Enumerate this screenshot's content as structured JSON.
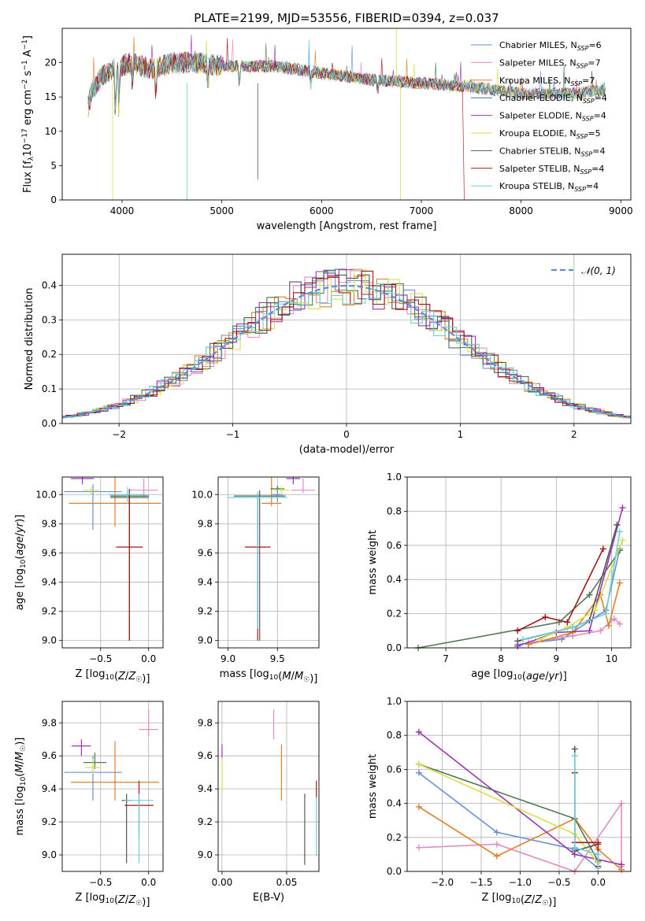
{
  "figure_title": "PLATE=2199, MJD=53556, FIBERID=0394, z=0.037",
  "series": [
    {
      "name": "Chabrier MILES, N",
      "sub": "SSP",
      "suffix": "=6",
      "color": "#6a8fd8"
    },
    {
      "name": "Salpeter MILES, N",
      "sub": "SSP",
      "suffix": "=7",
      "color": "#e38cc2"
    },
    {
      "name": "Kroupa MILES, N",
      "sub": "SSP",
      "suffix": "=7",
      "color": "#e07f2a"
    },
    {
      "name": "Chabrier ELODIE, N",
      "sub": "SSP",
      "suffix": "=4",
      "color": "#4f7a55"
    },
    {
      "name": "Salpeter ELODIE, N",
      "sub": "SSP",
      "suffix": "=4",
      "color": "#9c35b4"
    },
    {
      "name": "Kroupa ELODIE, N",
      "sub": "SSP",
      "suffix": "=5",
      "color": "#d6e04a"
    },
    {
      "name": "Chabrier STELIB, N",
      "sub": "SSP",
      "suffix": "=4",
      "color": "#555555"
    },
    {
      "name": "Salpeter STELIB, N",
      "sub": "SSP",
      "suffix": "=4",
      "color": "#a51616"
    },
    {
      "name": "Kroupa STELIB, N",
      "sub": "SSP",
      "suffix": "=4",
      "color": "#6cd0d6"
    }
  ],
  "chart_data": [
    {
      "id": "spectrum",
      "type": "line",
      "xlabel": "wavelength [Angstrom, rest frame]",
      "ylabel": "Flux [f_λ 10^-17 erg cm^-2 s^-1 A^-1]",
      "xlim": [
        3400,
        9100
      ],
      "ylim": [
        0,
        25
      ],
      "xticks": [
        4000,
        5000,
        6000,
        7000,
        8000,
        9000
      ],
      "yticks": [
        0,
        5,
        10,
        15,
        20
      ],
      "continuum": [
        [
          3650,
          13
        ],
        [
          3700,
          16
        ],
        [
          3800,
          18
        ],
        [
          3900,
          19
        ],
        [
          4000,
          19.5
        ],
        [
          4100,
          20
        ],
        [
          4300,
          19
        ],
        [
          4500,
          20
        ],
        [
          4800,
          20
        ],
        [
          5000,
          19.5
        ],
        [
          5500,
          19.5
        ],
        [
          6000,
          18.5
        ],
        [
          6500,
          17.5
        ],
        [
          7000,
          17
        ],
        [
          7500,
          16.5
        ],
        [
          8000,
          15.5
        ],
        [
          8500,
          15.5
        ],
        [
          8850,
          16
        ]
      ],
      "legend_position": "upper-right"
    },
    {
      "id": "residuals",
      "type": "line",
      "xlabel": "(data-model)/error",
      "ylabel": "Normed distribution",
      "xlim": [
        -2.5,
        2.5
      ],
      "ylim": [
        0,
        0.49
      ],
      "xticks": [
        -2,
        -1,
        0,
        1,
        2
      ],
      "yticks": [
        0.0,
        0.1,
        0.2,
        0.3,
        0.4
      ],
      "normal_label": "𝒩(0, 1)",
      "grid": true
    },
    {
      "id": "age_vs_z",
      "type": "scatter",
      "xlabel": "Z [log10(Z/Z☉)]",
      "ylabel": "age  [log10(age/yr)]",
      "xlim": [
        -0.9,
        0.15
      ],
      "ylim": [
        8.95,
        10.12
      ],
      "xticks": [
        -0.5,
        0.0
      ],
      "yticks": [
        9.0,
        9.2,
        9.4,
        9.6,
        9.8,
        10.0
      ],
      "points": [
        {
          "s": 0,
          "x": -0.58,
          "xerr": 0.3,
          "y": 10.02,
          "yerr": [
            0.26,
            0.05
          ]
        },
        {
          "s": 1,
          "x": -0.05,
          "xerr": 0.15,
          "y": 10.03,
          "yerr": [
            0.05,
            0.08
          ]
        },
        {
          "s": 2,
          "x": -0.35,
          "xerr": 0.48,
          "y": 9.94,
          "yerr": [
            0.16,
            0.18
          ]
        },
        {
          "s": 3,
          "x": -0.2,
          "xerr": 0.2,
          "y": 9.98,
          "yerr": [
            0.05,
            0.05
          ]
        },
        {
          "s": 4,
          "x": -0.69,
          "xerr": 0.12,
          "y": 10.11,
          "yerr": [
            0.04,
            0.01
          ]
        },
        {
          "s": 5,
          "x": -0.6,
          "xerr": 0.08,
          "y": 10.03,
          "yerr": [
            0.03,
            0.02
          ]
        },
        {
          "s": 6,
          "x": -0.2,
          "xerr": 0.2,
          "y": 9.99,
          "yerr": [
            0.99,
            0.05
          ]
        },
        {
          "s": 7,
          "x": -0.2,
          "xerr": 0.14,
          "y": 9.64,
          "yerr": [
            0.64,
            0.36
          ]
        },
        {
          "s": 8,
          "x": -0.22,
          "xerr": 0.2,
          "y": 10.0,
          "yerr": [
            0.05,
            0.05
          ]
        }
      ]
    },
    {
      "id": "age_vs_mass",
      "type": "scatter",
      "xlabel": "mass [log10(M/M☉)]",
      "ylabel": "",
      "xlim": [
        8.9,
        9.92
      ],
      "ylim": [
        8.95,
        10.12
      ],
      "xticks": [
        9.0,
        9.5
      ],
      "yticks": [
        9.0,
        9.2,
        9.4,
        9.6,
        9.8,
        10.0
      ],
      "points": [
        {
          "s": 0,
          "x": 9.5,
          "xerr": 0.05,
          "y": 10.0,
          "yerr": [
            0.05,
            0.05
          ]
        },
        {
          "s": 1,
          "x": 9.76,
          "xerr": 0.12,
          "y": 10.03,
          "yerr": [
            0.02,
            0.08
          ]
        },
        {
          "s": 2,
          "x": 9.44,
          "xerr": 0.1,
          "y": 9.94,
          "yerr": [
            0.02,
            0.18
          ]
        },
        {
          "s": 3,
          "x": 9.5,
          "xerr": 0.07,
          "y": 10.04,
          "yerr": [
            0.02,
            0.02
          ]
        },
        {
          "s": 4,
          "x": 9.66,
          "xerr": 0.07,
          "y": 10.11,
          "yerr": [
            0.04,
            0.01
          ]
        },
        {
          "s": 5,
          "x": 9.54,
          "xerr": 0.08,
          "y": 10.03,
          "yerr": [
            0.02,
            0.02
          ]
        },
        {
          "s": 6,
          "x": 9.32,
          "xerr": 0.26,
          "y": 9.99,
          "yerr": [
            0.99,
            0.04
          ]
        },
        {
          "s": 7,
          "x": 9.3,
          "xerr": 0.13,
          "y": 9.64,
          "yerr": [
            0.64,
            0.36
          ]
        },
        {
          "s": 8,
          "x": 9.3,
          "xerr": 0.3,
          "y": 9.98,
          "yerr": [
            0.9,
            0.04
          ]
        }
      ]
    },
    {
      "id": "mass_weight_vs_age",
      "type": "line",
      "xlabel": "age  [log10(age/yr)]",
      "ylabel": "mass weight",
      "xlim": [
        6.3,
        10.35
      ],
      "ylim": [
        0,
        1.0
      ],
      "xticks": [
        7,
        8,
        9,
        10
      ],
      "yticks": [
        0.0,
        0.2,
        0.4,
        0.6,
        0.8,
        1.0
      ],
      "lines": [
        {
          "s": 0,
          "pts": [
            [
              8.3,
              0.02
            ],
            [
              9.1,
              0.05
            ],
            [
              9.9,
              0.22
            ],
            [
              10.15,
              0.58
            ]
          ]
        },
        {
          "s": 1,
          "pts": [
            [
              8.5,
              0.03
            ],
            [
              9.3,
              0.07
            ],
            [
              9.8,
              0.1
            ],
            [
              10.05,
              0.17
            ],
            [
              10.15,
              0.14
            ]
          ]
        },
        {
          "s": 2,
          "pts": [
            [
              8.5,
              0.02
            ],
            [
              9.3,
              0.09
            ],
            [
              9.8,
              0.31
            ],
            [
              9.95,
              0.13
            ],
            [
              10.15,
              0.38
            ]
          ]
        },
        {
          "s": 3,
          "pts": [
            [
              6.5,
              0.0
            ],
            [
              9.05,
              0.15
            ],
            [
              9.6,
              0.31
            ],
            [
              10.15,
              0.57
            ]
          ]
        },
        {
          "s": 4,
          "pts": [
            [
              8.3,
              0.01
            ],
            [
              9.0,
              0.09
            ],
            [
              9.6,
              0.1
            ],
            [
              10.2,
              0.82
            ]
          ]
        },
        {
          "s": 5,
          "pts": [
            [
              8.7,
              0.05
            ],
            [
              9.2,
              0.12
            ],
            [
              9.7,
              0.22
            ],
            [
              10.2,
              0.63
            ]
          ]
        },
        {
          "s": 6,
          "pts": [
            [
              8.3,
              0.04
            ],
            [
              9.3,
              0.12
            ],
            [
              9.6,
              0.16
            ],
            [
              10.1,
              0.72
            ]
          ]
        },
        {
          "s": 7,
          "pts": [
            [
              8.3,
              0.1
            ],
            [
              8.8,
              0.18
            ],
            [
              9.2,
              0.15
            ],
            [
              9.85,
              0.58
            ]
          ]
        },
        {
          "s": 8,
          "pts": [
            [
              8.4,
              0.05
            ],
            [
              9.3,
              0.12
            ],
            [
              9.9,
              0.2
            ],
            [
              10.15,
              0.68
            ]
          ]
        }
      ]
    },
    {
      "id": "mass_vs_z",
      "type": "scatter",
      "xlabel": "Z [log10(Z/Z☉)]",
      "ylabel": "mass [log10(M/M☉)]",
      "xlim": [
        -0.9,
        0.15
      ],
      "ylim": [
        8.9,
        9.93
      ],
      "xticks": [
        -0.5,
        0.0
      ],
      "yticks": [
        9.0,
        9.2,
        9.4,
        9.6,
        9.8
      ],
      "points": [
        {
          "s": 0,
          "x": -0.58,
          "xerr": 0.3,
          "y": 9.5,
          "yerr": [
            0.17,
            0.1
          ]
        },
        {
          "s": 1,
          "x": 0.0,
          "xerr": 0.1,
          "y": 9.76,
          "yerr": [
            0.04,
            0.12
          ]
        },
        {
          "s": 2,
          "x": -0.35,
          "xerr": 0.46,
          "y": 9.44,
          "yerr": [
            0.11,
            0.25
          ]
        },
        {
          "s": 3,
          "x": -0.56,
          "xerr": 0.12,
          "y": 9.56,
          "yerr": [
            0.04,
            0.06
          ]
        },
        {
          "s": 4,
          "x": -0.7,
          "xerr": 0.1,
          "y": 9.66,
          "yerr": [
            0.06,
            0.04
          ]
        },
        {
          "s": 5,
          "x": -0.58,
          "xerr": 0.08,
          "y": 9.53,
          "yerr": [
            0.04,
            0.05
          ]
        },
        {
          "s": 6,
          "x": -0.23,
          "xerr": 0.05,
          "y": 9.33,
          "yerr": [
            0.38,
            0.04
          ]
        },
        {
          "s": 7,
          "x": -0.1,
          "xerr": 0.15,
          "y": 9.3,
          "yerr": [
            0.2,
            0.15
          ]
        },
        {
          "s": 8,
          "x": -0.1,
          "xerr": 0.15,
          "y": 9.33,
          "yerr": [
            0.38,
            0.04
          ]
        }
      ]
    },
    {
      "id": "mass_vs_ebv",
      "type": "scatter",
      "xlabel": "E(B-V)",
      "ylabel": "",
      "xlim": [
        -0.003,
        0.075
      ],
      "ylim": [
        8.9,
        9.93
      ],
      "xticks": [
        0.0,
        0.05
      ],
      "yticks": [
        9.0,
        9.2,
        9.4,
        9.6,
        9.8
      ],
      "points": [
        {
          "s": 1,
          "x": 0.04,
          "y": 9.79,
          "yerr": [
            0.09,
            0.09
          ]
        },
        {
          "s": 2,
          "x": 0.046,
          "y": 9.5,
          "yerr": [
            0.17,
            0.17
          ]
        },
        {
          "s": 4,
          "x": 0.0,
          "y": 9.63,
          "yerr": [
            0.04,
            0.04
          ]
        },
        {
          "s": 5,
          "x": 0.0,
          "y": 9.48,
          "yerr": [
            0.1,
            0.1
          ]
        },
        {
          "s": 6,
          "x": 0.064,
          "y": 9.23,
          "yerr": [
            0.29,
            0.14
          ]
        },
        {
          "s": 7,
          "x": 0.073,
          "y": 9.4,
          "yerr": [
            0.05,
            0.05
          ]
        },
        {
          "s": 8,
          "x": 0.073,
          "y": 9.17,
          "yerr": [
            0.18,
            0.18
          ]
        }
      ]
    },
    {
      "id": "mass_weight_vs_z",
      "type": "line",
      "xlabel": "Z [log10(Z/Z☉)]",
      "ylabel": "mass weight",
      "xlim": [
        -2.45,
        0.42
      ],
      "ylim": [
        0,
        1.0
      ],
      "xticks": [
        -2.0,
        -1.5,
        -1.0,
        -0.5,
        0.0
      ],
      "yticks": [
        0.0,
        0.2,
        0.4,
        0.6,
        0.8,
        1.0
      ],
      "lines": [
        {
          "s": 0,
          "pts": [
            [
              -2.3,
              0.58
            ],
            [
              -1.3,
              0.23
            ],
            [
              -0.3,
              0.13
            ],
            [
              0.0,
              0.02
            ]
          ]
        },
        {
          "s": 1,
          "pts": [
            [
              -2.3,
              0.14
            ],
            [
              -1.3,
              0.16
            ],
            [
              -0.3,
              0.0
            ],
            [
              0.3,
              0.4
            ],
            [
              0.3,
              0.03
            ]
          ]
        },
        {
          "s": 2,
          "pts": [
            [
              -2.3,
              0.38
            ],
            [
              -1.3,
              0.09
            ],
            [
              -0.3,
              0.31
            ],
            [
              0.0,
              0.13
            ],
            [
              0.3,
              0.01
            ]
          ]
        },
        {
          "s": 3,
          "pts": [
            [
              -2.3,
              0.63
            ],
            [
              -0.3,
              0.31
            ],
            [
              0.0,
              0.06
            ]
          ]
        },
        {
          "s": 4,
          "pts": [
            [
              -2.3,
              0.82
            ],
            [
              -0.3,
              0.1
            ],
            [
              0.3,
              0.04
            ]
          ]
        },
        {
          "s": 5,
          "pts": [
            [
              -2.3,
              0.63
            ],
            [
              -0.3,
              0.22
            ],
            [
              0.0,
              0.05
            ]
          ]
        },
        {
          "s": 6,
          "pts": [
            [
              -0.3,
              0.72
            ],
            [
              -0.3,
              0.12
            ],
            [
              0.0,
              0.16
            ]
          ]
        },
        {
          "s": 7,
          "pts": [
            [
              -0.3,
              0.58
            ],
            [
              -0.3,
              0.17
            ],
            [
              0.0,
              0.17
            ],
            [
              0.0,
              0.03
            ]
          ]
        },
        {
          "s": 8,
          "pts": [
            [
              -0.3,
              0.68
            ],
            [
              -0.3,
              0.14
            ],
            [
              0.0,
              0.1
            ],
            [
              0.0,
              0.02
            ]
          ]
        }
      ]
    }
  ]
}
